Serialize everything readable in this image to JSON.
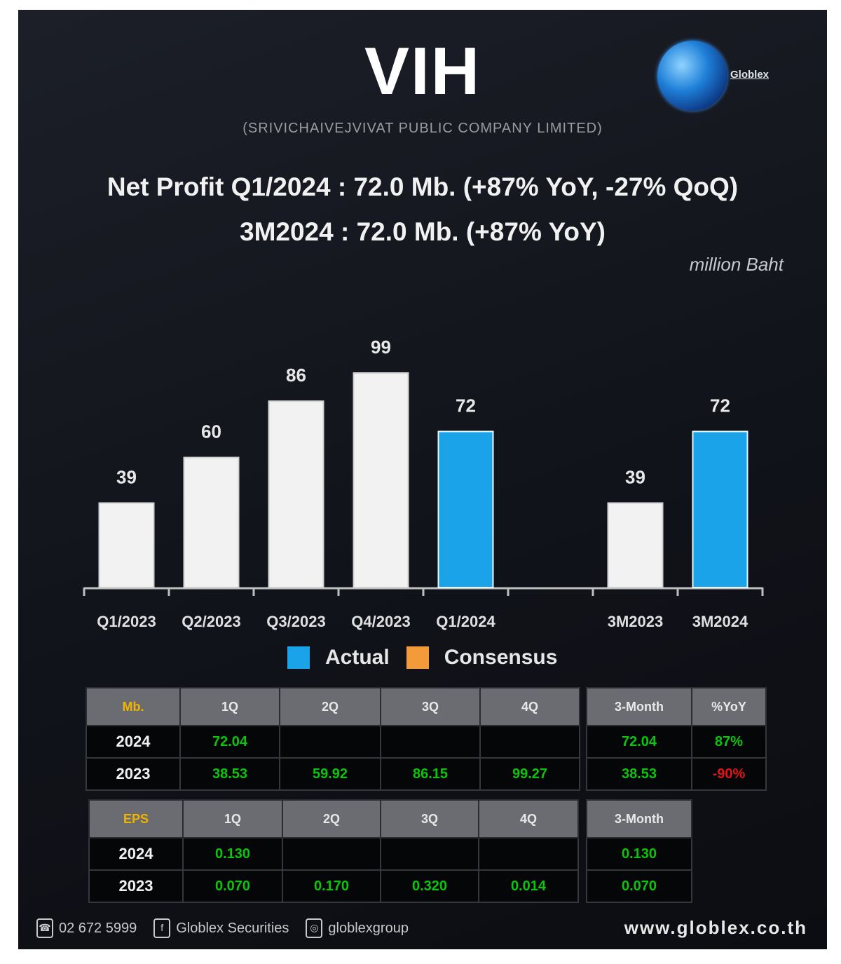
{
  "header": {
    "ticker": "VIH",
    "company": "(SRIVICHAIVEJVIVAT PUBLIC COMPANY LIMITED)",
    "logo_text": "Globlex",
    "headline_1": "Net Profit  Q1/2024 : 72.0 Mb. (+87% YoY, -27% QoQ)",
    "headline_2": "3M2024 : 72.0 Mb. (+87% YoY)",
    "unit": "million Baht"
  },
  "colors": {
    "actual": "#1aa3e8",
    "consensus": "#f39a3a",
    "white_bar": "#f2f2f2"
  },
  "chart_data": {
    "type": "bar",
    "title": "Net Profit",
    "ylabel": "million Baht",
    "categories": [
      "Q1/2023",
      "Q2/2023",
      "Q3/2023",
      "Q4/2023",
      "Q1/2024",
      "",
      "3M2023",
      "3M2024"
    ],
    "values": [
      39,
      60,
      86,
      99,
      72,
      null,
      39,
      72
    ],
    "highlight": [
      false,
      false,
      false,
      false,
      true,
      false,
      false,
      true
    ],
    "ylim": [
      0,
      110
    ]
  },
  "legend": {
    "actual": "Actual",
    "consensus": "Consensus"
  },
  "table_np": {
    "corner": "Mb.",
    "quarters": [
      "1Q",
      "2Q",
      "3Q",
      "4Q"
    ],
    "rows": [
      {
        "year": "2024",
        "values": [
          "72.04",
          "",
          "",
          ""
        ]
      },
      {
        "year": "2023",
        "values": [
          "38.53",
          "59.92",
          "86.15",
          "99.27"
        ]
      }
    ]
  },
  "table_np_3m": {
    "headers": [
      "3-Month",
      "%YoY"
    ],
    "rows": [
      [
        "72.04",
        "87%"
      ],
      [
        "38.53",
        "-90%"
      ]
    ]
  },
  "table_eps": {
    "corner": "EPS",
    "quarters": [
      "1Q",
      "2Q",
      "3Q",
      "4Q"
    ],
    "rows": [
      {
        "year": "2024",
        "values": [
          "0.130",
          "",
          "",
          ""
        ]
      },
      {
        "year": "2023",
        "values": [
          "0.070",
          "0.170",
          "0.320",
          "0.014"
        ]
      }
    ]
  },
  "table_eps_3m": {
    "header": "3-Month",
    "rows": [
      "0.130",
      "0.070"
    ]
  },
  "footer": {
    "phone": "02 672 5999",
    "facebook": "Globlex Securities",
    "instagram": "globlexgroup",
    "website": "www.globlex.co.th"
  }
}
